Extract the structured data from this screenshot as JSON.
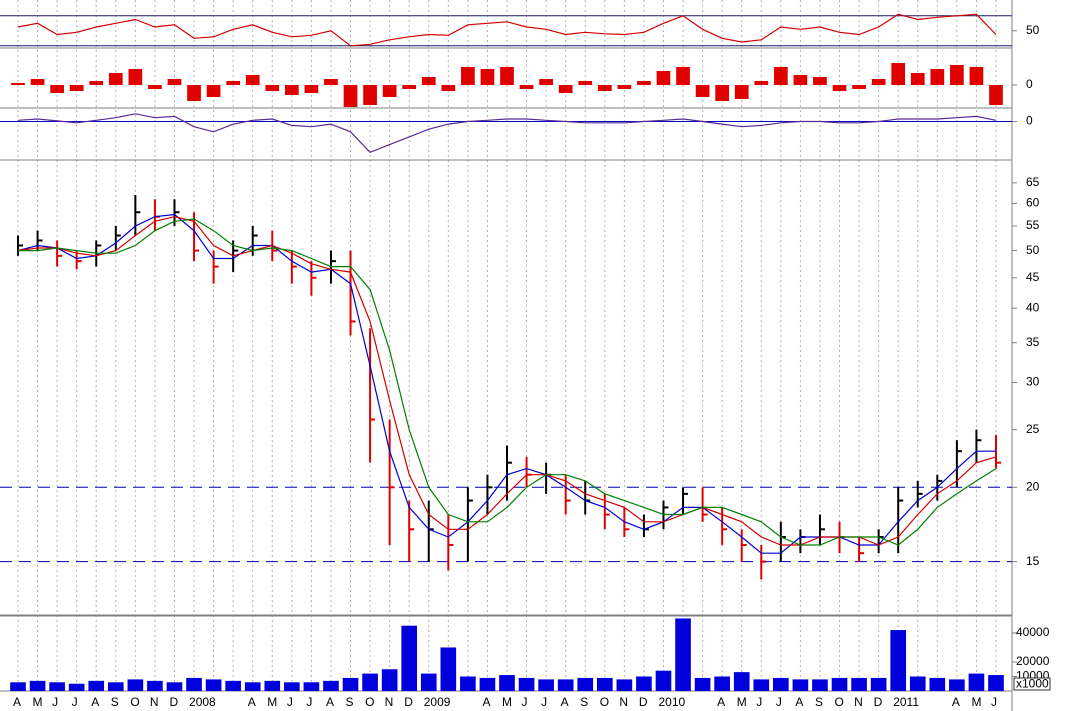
{
  "chart_data": [
    {
      "type": "line",
      "yscale": "linear",
      "ylim": [
        27,
        91
      ],
      "yticks": [
        50
      ],
      "hlines": [
        30,
        70
      ],
      "hline_color": "#1a1a6e",
      "series": [
        {
          "color": "#d40000",
          "values": [
            55,
            60,
            45,
            48,
            55,
            60,
            65,
            55,
            58,
            40,
            42,
            52,
            58,
            48,
            42,
            44,
            50,
            30,
            32,
            38,
            42,
            45,
            44,
            58,
            60,
            62,
            55,
            52,
            45,
            48,
            46,
            45,
            48,
            60,
            70,
            52,
            40,
            35,
            38,
            55,
            52,
            55,
            48,
            45,
            55,
            72,
            65,
            68,
            70,
            72,
            45
          ]
        }
      ]
    },
    {
      "type": "bar",
      "yscale": "linear",
      "ylim": [
        -1.15,
        1.75
      ],
      "yticks": [
        0
      ],
      "color": "#e00000",
      "values": [
        0.1,
        0.3,
        -0.4,
        -0.3,
        0.2,
        0.6,
        0.8,
        -0.2,
        0.3,
        -0.8,
        -0.6,
        0.2,
        0.5,
        -0.3,
        -0.5,
        -0.4,
        0.3,
        -1.1,
        -1.0,
        -0.6,
        -0.2,
        0.4,
        -0.3,
        0.9,
        0.8,
        0.9,
        -0.2,
        0.3,
        -0.4,
        0.2,
        -0.3,
        -0.2,
        0.2,
        0.7,
        0.9,
        -0.6,
        -0.8,
        -0.7,
        0.2,
        0.9,
        0.5,
        0.4,
        -0.3,
        -0.2,
        0.3,
        1.1,
        0.6,
        0.8,
        1.0,
        0.9,
        -1.0
      ]
    },
    {
      "type": "line",
      "yscale": "linear",
      "ylim": [
        -3,
        0.9
      ],
      "yticks": [
        0
      ],
      "hlines": [
        0
      ],
      "hline_color": "#0000c0",
      "series": [
        {
          "color": "#5a2a9a",
          "values": [
            0.1,
            0.2,
            0.05,
            -0.1,
            0.1,
            0.3,
            0.6,
            0.3,
            0.4,
            -0.4,
            -0.8,
            -0.2,
            0.1,
            0.2,
            -0.3,
            -0.4,
            -0.2,
            -0.8,
            -2.4,
            -1.8,
            -1.2,
            -0.6,
            -0.2,
            0.0,
            0.1,
            0.2,
            0.2,
            0.1,
            0,
            -0.1,
            -0.1,
            -0.1,
            0,
            0.1,
            0.2,
            0,
            -0.2,
            -0.4,
            -0.3,
            -0.1,
            0,
            0,
            -0.1,
            -0.1,
            0,
            0.2,
            0.2,
            0.2,
            0.3,
            0.4,
            0.1
          ]
        }
      ]
    },
    {
      "type": "ohlc",
      "yscale": "log",
      "ylim": [
        12.2,
        71
      ],
      "yticks": [
        15,
        20,
        25,
        30,
        35,
        40,
        45,
        50,
        55,
        60,
        65
      ],
      "hlines": [
        20,
        15
      ],
      "hline_color": "#0000b0",
      "up_color": "#000000",
      "down_color": "#e00000",
      "high": [
        53,
        54,
        52,
        50,
        52,
        55,
        62,
        61,
        61,
        58,
        50,
        52,
        55,
        54,
        50,
        48,
        50,
        50,
        37,
        26,
        19,
        19,
        18,
        20,
        21,
        23.5,
        22.5,
        22,
        21,
        20.5,
        19.5,
        18.5,
        18,
        19,
        20,
        20,
        18.5,
        17,
        16,
        17.5,
        17,
        18,
        17.5,
        16.5,
        17,
        20,
        20.5,
        21,
        24,
        25,
        24.5
      ],
      "low": [
        49,
        50,
        47,
        46.5,
        47,
        50,
        53,
        54,
        55,
        48,
        44,
        46,
        49,
        48,
        44,
        42,
        44,
        36,
        22,
        16,
        15,
        15,
        14.5,
        15,
        18,
        19,
        20,
        19.5,
        18,
        18,
        17,
        16.5,
        16.5,
        17,
        18,
        17.5,
        16,
        15,
        14,
        15,
        15.5,
        16,
        15.5,
        15,
        15.5,
        15.5,
        18.5,
        19,
        20,
        22,
        21.5
      ],
      "close": [
        51,
        52,
        49,
        48,
        51,
        53,
        58,
        57,
        58,
        50,
        47,
        50,
        53,
        50,
        47,
        45,
        48,
        38,
        26,
        20,
        17,
        17,
        16,
        19,
        20,
        22,
        21,
        21,
        19,
        19,
        18,
        17,
        17,
        18.5,
        19.5,
        18,
        17,
        16,
        15,
        16.5,
        16.5,
        17,
        16.5,
        15.5,
        16.5,
        19,
        19.5,
        20.5,
        23,
        24,
        22
      ],
      "series": [
        {
          "color": "#0000d0",
          "values": [
            50,
            51,
            50.5,
            48.5,
            49,
            51.5,
            55,
            57,
            57.5,
            54,
            48.5,
            48.5,
            51,
            51,
            48,
            46,
            46.5,
            44,
            32,
            23,
            18.5,
            17,
            16.5,
            17.5,
            19,
            21,
            21.5,
            21,
            20,
            19,
            18.5,
            17.5,
            17,
            17.5,
            18.5,
            18.5,
            17.5,
            16.5,
            15.5,
            15.5,
            16.5,
            16.5,
            16.5,
            16,
            16,
            17.5,
            19,
            20,
            21.5,
            23,
            23
          ]
        },
        {
          "color": "#d00000",
          "values": [
            50,
            50.5,
            50.5,
            49.5,
            49,
            50,
            53,
            56,
            57,
            56,
            51,
            49,
            50,
            51,
            49.5,
            47.5,
            46.5,
            46,
            38,
            28,
            21,
            18,
            17,
            17,
            18,
            19.5,
            21,
            21,
            20.5,
            19.5,
            19,
            18.5,
            17.5,
            17.5,
            18,
            18.5,
            18,
            17.5,
            16.5,
            16,
            16,
            16.5,
            16.5,
            16.5,
            16,
            16.5,
            18,
            19.5,
            20.5,
            22,
            22.5
          ]
        },
        {
          "color": "#008000",
          "values": [
            50,
            50,
            50.5,
            50,
            49.5,
            49.5,
            51,
            54,
            56,
            56.5,
            54,
            51,
            50,
            50.5,
            50,
            48.5,
            47,
            47,
            43,
            34,
            25,
            20,
            18,
            17.5,
            17.5,
            18.5,
            20,
            21,
            21,
            20.5,
            19.5,
            19,
            18.5,
            18,
            18,
            18.5,
            18.5,
            18,
            17.5,
            16.5,
            16,
            16,
            16.5,
            16.5,
            16.5,
            16,
            17,
            18.5,
            19.5,
            20.5,
            21.5
          ]
        }
      ]
    },
    {
      "type": "bar",
      "yscale": "linear",
      "ylim": [
        0,
        51000
      ],
      "yticks": [
        10000,
        20000,
        40000
      ],
      "color": "#0000dd",
      "unit_label": "x1000",
      "categories": [
        "A",
        "M",
        "J",
        "J",
        "A",
        "S",
        "O",
        "N",
        "D",
        "2008",
        null,
        null,
        "A",
        "M",
        "J",
        "J",
        "A",
        "S",
        "O",
        "N",
        "D",
        "2009",
        null,
        null,
        "A",
        "M",
        "J",
        "J",
        "A",
        "S",
        "O",
        "N",
        "D",
        "2010",
        null,
        null,
        "A",
        "M",
        "J",
        "J",
        "A",
        "S",
        "O",
        "N",
        "D",
        "2011",
        null,
        null,
        "A",
        "M",
        "J"
      ],
      "values": [
        6000,
        7000,
        6000,
        5000,
        7000,
        6000,
        8000,
        7000,
        6000,
        9000,
        8000,
        7000,
        6000,
        7000,
        6000,
        6000,
        7000,
        9000,
        12000,
        15000,
        45000,
        12000,
        30000,
        10000,
        9000,
        11000,
        9000,
        8000,
        8000,
        9000,
        9000,
        8000,
        10000,
        14000,
        50000,
        9000,
        10000,
        13000,
        8000,
        9000,
        8000,
        8000,
        9000,
        9000,
        9000,
        42000,
        10000,
        9000,
        8000,
        12000,
        11000
      ]
    }
  ]
}
